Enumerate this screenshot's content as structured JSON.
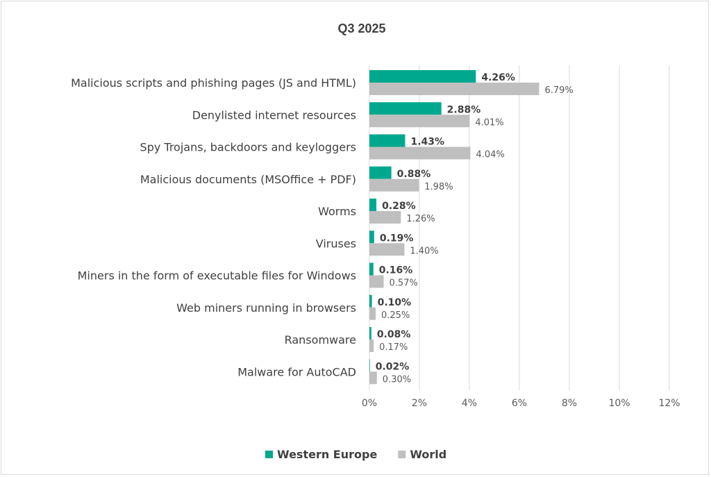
{
  "chart_data": {
    "type": "bar",
    "orientation": "horizontal",
    "title": "Q3 2025",
    "categories": [
      "Malicious scripts and phishing pages (JS and HTML)",
      "Denylisted internet resources",
      "Spy Trojans, backdoors and keyloggers",
      "Malicious documents (MSOffice + PDF)",
      "Worms",
      "Viruses",
      "Miners in the form of executable files for Windows",
      "Web miners running in browsers",
      "Ransomware",
      "Malware for AutoCAD"
    ],
    "series": [
      {
        "name": "Western Europe",
        "color": "#00a88e",
        "values": [
          4.26,
          2.88,
          1.43,
          0.88,
          0.28,
          0.19,
          0.16,
          0.1,
          0.08,
          0.02
        ],
        "labels": [
          "4.26%",
          "2.88%",
          "1.43%",
          "0.88%",
          "0.28%",
          "0.19%",
          "0.16%",
          "0.10%",
          "0.08%",
          "0.02%"
        ]
      },
      {
        "name": "World",
        "color": "#bfbfbf",
        "values": [
          6.79,
          4.01,
          4.04,
          1.98,
          1.26,
          1.4,
          0.57,
          0.25,
          0.17,
          0.3
        ],
        "labels": [
          "6.79%",
          "4.01%",
          "4.04%",
          "1.98%",
          "1.26%",
          "1.40%",
          "0.57%",
          "0.25%",
          "0.17%",
          "0.30%"
        ]
      }
    ],
    "xlim": [
      0,
      12
    ],
    "ticks": [
      0,
      2,
      4,
      6,
      8,
      10,
      12
    ],
    "tick_labels": [
      "0%",
      "2%",
      "4%",
      "6%",
      "8%",
      "10%",
      "12%"
    ],
    "grid": true,
    "legend_position": "bottom"
  }
}
